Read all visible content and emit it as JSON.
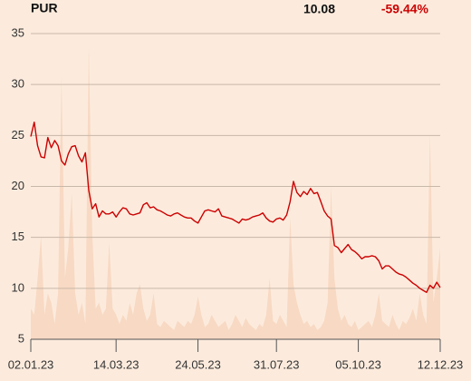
{
  "chart_data": {
    "type": "line",
    "title": "PUR",
    "price": 10.08,
    "change": {
      "value": -59.44,
      "label": "-59.44%"
    },
    "categories": [
      "02.01.23",
      null,
      null,
      null,
      null,
      null,
      null,
      null,
      null,
      null,
      null,
      null,
      null,
      null,
      null,
      null,
      null,
      null,
      null,
      null,
      null,
      null,
      null,
      null,
      null,
      "14.03.23",
      null,
      null,
      null,
      null,
      null,
      null,
      null,
      null,
      null,
      null,
      null,
      null,
      null,
      null,
      null,
      null,
      null,
      null,
      null,
      null,
      null,
      null,
      null,
      "24.05.23",
      null,
      null,
      null,
      null,
      null,
      null,
      null,
      null,
      null,
      null,
      null,
      null,
      null,
      null,
      null,
      null,
      null,
      null,
      null,
      null,
      null,
      null,
      "31.07.23",
      null,
      null,
      null,
      null,
      null,
      null,
      null,
      null,
      null,
      null,
      null,
      null,
      null,
      null,
      null,
      null,
      null,
      null,
      null,
      null,
      null,
      null,
      null,
      "05.10.23",
      null,
      null,
      null,
      null,
      null,
      null,
      null,
      null,
      null,
      null,
      null,
      null,
      null,
      null,
      null,
      null,
      null,
      null,
      null,
      null,
      null,
      null,
      null,
      "12.12.23"
    ],
    "series": [
      {
        "color": "#cc0000",
        "values": [
          24.9,
          26.3,
          24.0,
          22.9,
          22.8,
          24.8,
          23.8,
          24.5,
          24.0,
          22.5,
          22.1,
          23.2,
          23.9,
          24.0,
          23.0,
          22.4,
          23.3,
          19.6,
          17.8,
          18.3,
          17.0,
          17.6,
          17.3,
          17.3,
          17.5,
          17.0,
          17.5,
          17.9,
          17.8,
          17.3,
          17.2,
          17.3,
          17.4,
          18.2,
          18.4,
          17.9,
          18.0,
          17.7,
          17.6,
          17.4,
          17.2,
          17.1,
          17.3,
          17.4,
          17.2,
          17.0,
          16.9,
          16.9,
          16.6,
          16.4,
          17.0,
          17.6,
          17.7,
          17.6,
          17.5,
          17.8,
          17.1,
          17.0,
          16.9,
          16.8,
          16.6,
          16.4,
          16.8,
          16.7,
          16.8,
          17.0,
          17.1,
          17.2,
          17.4,
          16.9,
          16.6,
          16.5,
          16.8,
          16.9,
          16.7,
          17.2,
          18.5,
          20.5,
          19.4,
          19.0,
          19.5,
          19.2,
          19.8,
          19.3,
          19.4,
          18.5,
          17.6,
          17.1,
          16.8,
          14.2,
          14.0,
          13.5,
          13.9,
          14.3,
          13.8,
          13.6,
          13.3,
          12.9,
          13.1,
          13.1,
          13.2,
          13.1,
          12.7,
          11.9,
          12.2,
          12.2,
          11.9,
          11.6,
          11.4,
          11.3,
          11.1,
          10.8,
          10.5,
          10.3,
          10.0,
          9.8,
          9.6,
          10.3,
          10.0,
          10.6,
          10.08
        ]
      },
      {
        "color": "#f8d9c3",
        "axis": "y2",
        "values": [
          10,
          8,
          20,
          34,
          8,
          15,
          12,
          5,
          15,
          87,
          20,
          30,
          48,
          15,
          8,
          12,
          5,
          97,
          35,
          10,
          12,
          8,
          10,
          32,
          10,
          8,
          5,
          8,
          6,
          12,
          8,
          15,
          18,
          10,
          6,
          8,
          15,
          5,
          4,
          6,
          5,
          4,
          3,
          6,
          5,
          4,
          6,
          5,
          8,
          14,
          8,
          4,
          5,
          8,
          6,
          4,
          5,
          6,
          3,
          5,
          8,
          6,
          4,
          7,
          5,
          4,
          3,
          5,
          4,
          8,
          20,
          6,
          5,
          8,
          6,
          4,
          40,
          18,
          12,
          8,
          5,
          6,
          4,
          5,
          3,
          4,
          6,
          12,
          50,
          20,
          10,
          6,
          8,
          5,
          4,
          6,
          3,
          4,
          5,
          6,
          4,
          8,
          15,
          6,
          5,
          4,
          8,
          5,
          3,
          6,
          5,
          7,
          10,
          6,
          15,
          8,
          5,
          68,
          12,
          20,
          30
        ]
      }
    ],
    "ylim": [
      5,
      35
    ],
    "yticks": [
      5,
      10,
      15,
      20,
      25,
      30,
      35
    ],
    "y2lim": [
      0,
      100
    ],
    "grid": true
  }
}
